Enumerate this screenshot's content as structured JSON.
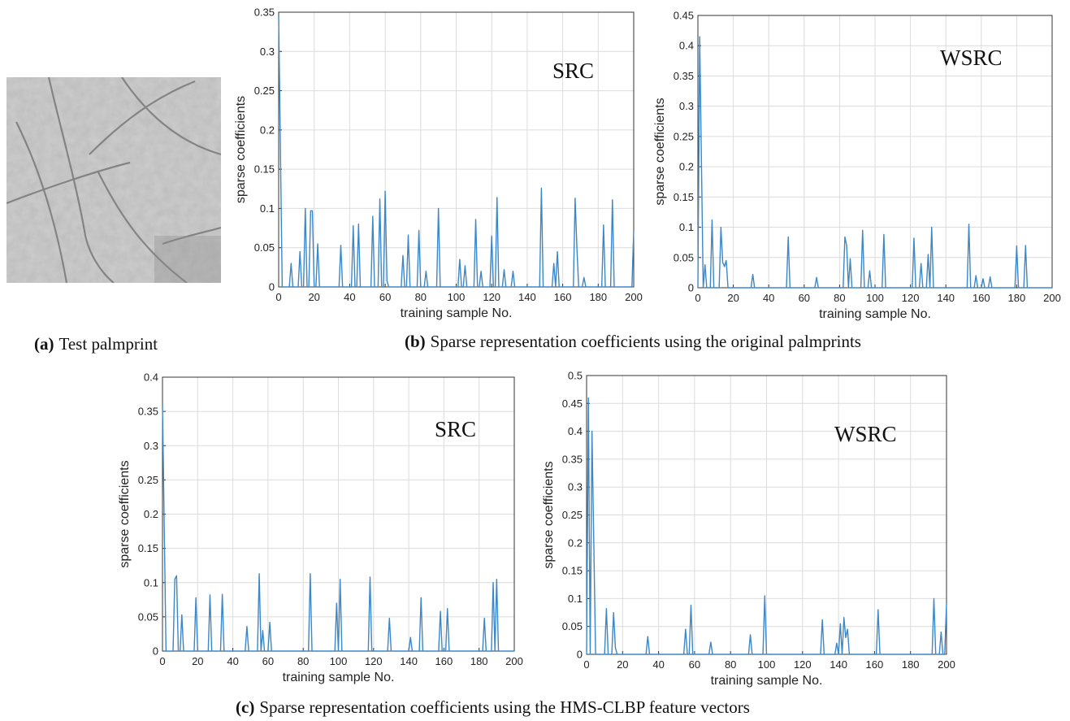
{
  "chart_data": [
    {
      "type": "line",
      "annotation": "SRC",
      "x_label": "training sample No.",
      "y_label": "sparse coefficients",
      "color": "#3b87c8",
      "grid": true,
      "xlim": [
        0,
        200
      ],
      "xticks": [
        0,
        20,
        40,
        60,
        80,
        100,
        120,
        140,
        160,
        180,
        200
      ],
      "ylim": [
        0,
        0.35
      ],
      "yticks": [
        0,
        0.05,
        0.1,
        0.15,
        0.2,
        0.25,
        0.3,
        0.35
      ],
      "x": [
        0,
        2,
        6,
        7,
        8,
        11,
        12,
        13,
        14,
        15,
        16,
        17,
        18,
        19,
        20,
        21,
        22,
        23,
        34,
        35,
        36,
        41,
        42,
        43,
        44,
        45,
        46,
        52,
        53,
        54,
        56,
        57,
        58,
        59,
        60,
        61,
        62,
        69,
        70,
        71,
        72,
        73,
        74,
        78,
        79,
        80,
        82,
        83,
        84,
        89,
        90,
        91,
        101,
        102,
        103,
        104,
        105,
        106,
        110,
        111,
        112,
        113,
        114,
        115,
        119,
        120,
        121,
        122,
        123,
        124,
        126,
        127,
        128,
        131,
        132,
        133,
        147,
        148,
        149,
        154,
        155,
        156,
        157,
        158,
        166,
        167,
        168,
        169,
        171,
        172,
        173,
        182,
        183,
        184,
        187,
        188,
        189,
        199,
        200
      ],
      "values": [
        0.345,
        0,
        0,
        0.03,
        0,
        0,
        0.045,
        0,
        0,
        0.1,
        0,
        0,
        0.097,
        0.097,
        0,
        0,
        0.055,
        0,
        0,
        0.053,
        0,
        0,
        0.078,
        0,
        0,
        0.08,
        0,
        0,
        0.09,
        0,
        0,
        0.112,
        0,
        0,
        0.122,
        0.008,
        0,
        0,
        0.04,
        0,
        0,
        0.066,
        0,
        0,
        0.072,
        0,
        0,
        0.02,
        0,
        0,
        0.1,
        0,
        0,
        0.035,
        0,
        0,
        0.027,
        0,
        0,
        0.086,
        0,
        0,
        0.02,
        0,
        0,
        0.065,
        0,
        0,
        0.114,
        0,
        0,
        0.022,
        0,
        0,
        0.02,
        0,
        0,
        0.126,
        0,
        0,
        0.03,
        0,
        0.045,
        0,
        0,
        0.113,
        0.05,
        0,
        0,
        0.012,
        0,
        0,
        0.079,
        0,
        0,
        0.111,
        0,
        0,
        0.072
      ]
    },
    {
      "type": "line",
      "annotation": "WSRC",
      "x_label": "training sample No.",
      "y_label": "sparse coefficients",
      "color": "#3b87c8",
      "grid": true,
      "xlim": [
        0,
        200
      ],
      "xticks": [
        0,
        20,
        40,
        60,
        80,
        100,
        120,
        140,
        160,
        180,
        200
      ],
      "ylim": [
        0,
        0.45
      ],
      "yticks": [
        0,
        0.05,
        0.1,
        0.15,
        0.2,
        0.25,
        0.3,
        0.35,
        0.4,
        0.45
      ],
      "x": [
        0,
        1,
        3,
        4,
        5,
        7,
        8,
        9,
        12,
        13,
        14,
        15,
        16,
        17,
        30,
        31,
        32,
        50,
        51,
        52,
        66,
        67,
        68,
        82,
        83,
        84,
        85,
        86,
        87,
        92,
        93,
        94,
        96,
        97,
        98,
        104,
        105,
        106,
        121,
        122,
        123,
        125,
        126,
        127,
        129,
        130,
        131,
        132,
        133,
        152,
        153,
        154,
        156,
        157,
        158,
        160,
        161,
        162,
        164,
        165,
        166,
        179,
        180,
        181,
        184,
        185,
        186,
        200
      ],
      "values": [
        0,
        0.415,
        0,
        0.038,
        0,
        0,
        0.112,
        0,
        0,
        0.1,
        0.042,
        0.035,
        0.045,
        0,
        0,
        0.022,
        0,
        0,
        0.084,
        0,
        0,
        0.017,
        0,
        0,
        0.084,
        0.07,
        0,
        0.048,
        0,
        0,
        0.095,
        0,
        0,
        0.028,
        0,
        0,
        0.088,
        0,
        0,
        0.082,
        0,
        0,
        0.04,
        0,
        0,
        0.055,
        0,
        0.1,
        0,
        0,
        0.105,
        0,
        0,
        0.02,
        0,
        0,
        0.015,
        0,
        0,
        0.018,
        0,
        0,
        0.069,
        0,
        0,
        0.07,
        0,
        0
      ]
    },
    {
      "type": "line",
      "annotation": "SRC",
      "x_label": "training sample No.",
      "y_label": "sparse coefficients",
      "color": "#3b87c8",
      "grid": true,
      "xlim": [
        0,
        200
      ],
      "xticks": [
        0,
        20,
        40,
        60,
        80,
        100,
        120,
        140,
        160,
        180,
        200
      ],
      "ylim": [
        0,
        0.4
      ],
      "yticks": [
        0,
        0.05,
        0.1,
        0.15,
        0.2,
        0.25,
        0.3,
        0.35,
        0.4
      ],
      "x": [
        0,
        2,
        6,
        7,
        8,
        9,
        10,
        11,
        12,
        18,
        19,
        20,
        26,
        27,
        28,
        33,
        34,
        35,
        47,
        48,
        49,
        54,
        55,
        56,
        57,
        58,
        60,
        61,
        62,
        83,
        84,
        85,
        98,
        99,
        100,
        101,
        102,
        117,
        118,
        119,
        128,
        129,
        130,
        140,
        141,
        142,
        146,
        147,
        148,
        157,
        158,
        159,
        161,
        162,
        163,
        182,
        183,
        184,
        187,
        188,
        189,
        190,
        191,
        200
      ],
      "values": [
        0.36,
        0,
        0,
        0.105,
        0.11,
        0,
        0,
        0.053,
        0,
        0,
        0.078,
        0,
        0,
        0.082,
        0,
        0,
        0.083,
        0,
        0,
        0.036,
        0,
        0,
        0.113,
        0,
        0.03,
        0,
        0,
        0.042,
        0,
        0,
        0.113,
        0,
        0,
        0.07,
        0,
        0.105,
        0,
        0,
        0.108,
        0,
        0,
        0.048,
        0,
        0,
        0.02,
        0,
        0,
        0.078,
        0,
        0,
        0.058,
        0,
        0,
        0.062,
        0,
        0,
        0.048,
        0,
        0,
        0.1,
        0,
        0.105,
        0,
        0
      ]
    },
    {
      "type": "line",
      "annotation": "WSRC",
      "x_label": "training sample No.",
      "y_label": "sparse coefficients",
      "color": "#3b87c8",
      "grid": true,
      "xlim": [
        0,
        200
      ],
      "xticks": [
        0,
        20,
        40,
        60,
        80,
        100,
        120,
        140,
        160,
        180,
        200
      ],
      "ylim": [
        0,
        0.5
      ],
      "yticks": [
        0,
        0.05,
        0.1,
        0.15,
        0.2,
        0.25,
        0.3,
        0.35,
        0.4,
        0.45,
        0.5
      ],
      "x": [
        0,
        1,
        2,
        3,
        5,
        10,
        11,
        12,
        14,
        15,
        16,
        17,
        33,
        34,
        35,
        54,
        55,
        56,
        57,
        58,
        59,
        68,
        69,
        70,
        90,
        91,
        92,
        98,
        99,
        100,
        130,
        131,
        132,
        138,
        139,
        140,
        141,
        142,
        143,
        144,
        145,
        146,
        161,
        162,
        163,
        192,
        193,
        194,
        196,
        197,
        198,
        199,
        200
      ],
      "values": [
        0,
        0.46,
        0,
        0.4,
        0,
        0,
        0.082,
        0,
        0,
        0.075,
        0.012,
        0,
        0,
        0.032,
        0,
        0,
        0.045,
        0,
        0,
        0.088,
        0,
        0,
        0.022,
        0,
        0,
        0.035,
        0,
        0,
        0.105,
        0,
        0,
        0.062,
        0,
        0,
        0.02,
        0,
        0.055,
        0,
        0.066,
        0.03,
        0.045,
        0,
        0,
        0.08,
        0,
        0,
        0.1,
        0,
        0,
        0.04,
        0,
        0,
        0.092
      ]
    }
  ],
  "captions": [
    {
      "label": "(a)",
      "text": "Test palmprint"
    },
    {
      "label": "(b)",
      "text": "Sparse representation coefficients using the original palmprints"
    },
    {
      "label": "(c)",
      "text": "Sparse representation coefficients using the HMS-CLBP feature vectors"
    }
  ]
}
